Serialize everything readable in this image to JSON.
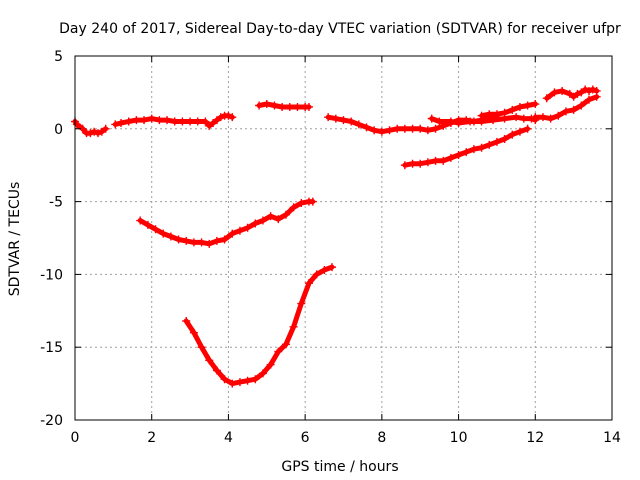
{
  "chart_data": {
    "type": "scatter",
    "title": "Day 240 of 2017, Sidereal Day-to-day VTEC variation (SDTVAR) for receiver ufpr",
    "xlabel": "GPS time / hours",
    "ylabel": "SDTVAR / TECUs",
    "xlim": [
      0,
      14
    ],
    "ylim": [
      -20,
      5
    ],
    "xticks": [
      "0",
      "2",
      "4",
      "6",
      "8",
      "10",
      "12",
      "14"
    ],
    "yticks": [
      "5",
      "0",
      "-5",
      "-10",
      "-15",
      "-20"
    ],
    "grid": true,
    "legend": "none",
    "marker": "+",
    "color": "#ff0000",
    "series": [
      {
        "x": [
          0.0,
          0.05,
          0.2,
          0.3,
          0.4,
          0.5,
          0.6,
          0.7,
          0.8
        ],
        "y": [
          0.5,
          0.3,
          0.0,
          -0.3,
          -0.3,
          -0.2,
          -0.3,
          -0.2,
          0.0
        ]
      },
      {
        "x": [
          1.05,
          1.2,
          1.4,
          1.6,
          1.8,
          2.0,
          2.2,
          2.4,
          2.6,
          2.8,
          3.0,
          3.2,
          3.4,
          3.5,
          3.6,
          3.7,
          3.8,
          3.9,
          4.0,
          4.1
        ],
        "y": [
          0.3,
          0.4,
          0.5,
          0.6,
          0.6,
          0.7,
          0.6,
          0.6,
          0.5,
          0.5,
          0.5,
          0.5,
          0.5,
          0.2,
          0.4,
          0.6,
          0.8,
          0.9,
          0.9,
          0.8
        ]
      },
      {
        "x": [
          4.8,
          5.0,
          5.2,
          5.4,
          5.6,
          5.8,
          6.0,
          6.1
        ],
        "y": [
          1.6,
          1.7,
          1.6,
          1.5,
          1.5,
          1.5,
          1.5,
          1.5
        ]
      },
      {
        "x": [
          6.6,
          6.8,
          7.0,
          7.2,
          7.4,
          7.6,
          7.8,
          8.0,
          8.2,
          8.4,
          8.6,
          8.8,
          9.0,
          9.2,
          9.4,
          9.6,
          9.8,
          10.0,
          10.2,
          10.4,
          10.6,
          10.8,
          11.0
        ],
        "y": [
          0.8,
          0.7,
          0.6,
          0.5,
          0.3,
          0.1,
          -0.1,
          -0.2,
          -0.1,
          0.0,
          0.0,
          0.0,
          0.0,
          -0.1,
          0.0,
          0.2,
          0.4,
          0.6,
          0.6,
          0.5,
          0.6,
          0.7,
          0.8
        ]
      },
      {
        "x": [
          9.3,
          9.5,
          9.8,
          10.0,
          10.3,
          10.6,
          10.9,
          11.2,
          11.5,
          11.7,
          11.9,
          12.0
        ],
        "y": [
          0.7,
          0.5,
          0.5,
          0.4,
          0.5,
          0.5,
          0.6,
          0.7,
          0.8,
          0.7,
          0.7,
          0.6
        ]
      },
      {
        "x": [
          10.6,
          10.8,
          11.0,
          11.2,
          11.4,
          11.6,
          11.8,
          12.0
        ],
        "y": [
          0.9,
          1.0,
          1.0,
          1.1,
          1.3,
          1.5,
          1.6,
          1.7
        ]
      },
      {
        "x": [
          12.3,
          12.5,
          12.7,
          12.9,
          13.0,
          13.1,
          13.2,
          13.3,
          13.4,
          13.5,
          13.6
        ],
        "y": [
          2.1,
          2.5,
          2.6,
          2.4,
          2.2,
          2.4,
          2.5,
          2.7,
          2.6,
          2.7,
          2.6
        ]
      },
      {
        "x": [
          12.0,
          12.2,
          12.4,
          12.6,
          12.8,
          13.0,
          13.2,
          13.4,
          13.6
        ],
        "y": [
          0.8,
          0.8,
          0.7,
          0.9,
          1.2,
          1.3,
          1.6,
          2.0,
          2.2
        ]
      },
      {
        "x": [
          8.6,
          8.8,
          9.0,
          9.2,
          9.4,
          9.6,
          9.8,
          10.0,
          10.2,
          10.4,
          10.6,
          10.8,
          11.0,
          11.2,
          11.4,
          11.6,
          11.8
        ],
        "y": [
          -2.5,
          -2.4,
          -2.4,
          -2.3,
          -2.2,
          -2.2,
          -2.0,
          -1.8,
          -1.6,
          -1.4,
          -1.3,
          -1.1,
          -0.9,
          -0.7,
          -0.4,
          -0.2,
          0.0
        ]
      },
      {
        "x": [
          1.7,
          1.9,
          2.1,
          2.3,
          2.5,
          2.7,
          2.9,
          3.1,
          3.3,
          3.5,
          3.7,
          3.9,
          4.1,
          4.3,
          4.5,
          4.7,
          4.9,
          5.1,
          5.3,
          5.5,
          5.7,
          5.9,
          6.1,
          6.2
        ],
        "y": [
          -6.3,
          -6.6,
          -6.9,
          -7.2,
          -7.4,
          -7.6,
          -7.7,
          -7.8,
          -7.8,
          -7.9,
          -7.7,
          -7.6,
          -7.2,
          -7.0,
          -6.8,
          -6.5,
          -6.3,
          -6.0,
          -6.2,
          -5.9,
          -5.4,
          -5.1,
          -5.0,
          -5.0
        ]
      },
      {
        "x": [
          2.9,
          3.1,
          3.3,
          3.5,
          3.7,
          3.9,
          4.1,
          4.3,
          4.5,
          4.7,
          4.9,
          5.1,
          5.3,
          5.5,
          5.7,
          5.9,
          6.1,
          6.3,
          6.5,
          6.7
        ],
        "y": [
          -13.2,
          -14.0,
          -15.0,
          -15.9,
          -16.6,
          -17.2,
          -17.5,
          -17.4,
          -17.3,
          -17.2,
          -16.8,
          -16.2,
          -15.3,
          -14.8,
          -13.6,
          -12.0,
          -10.6,
          -10.0,
          -9.7,
          -9.5
        ]
      }
    ]
  }
}
